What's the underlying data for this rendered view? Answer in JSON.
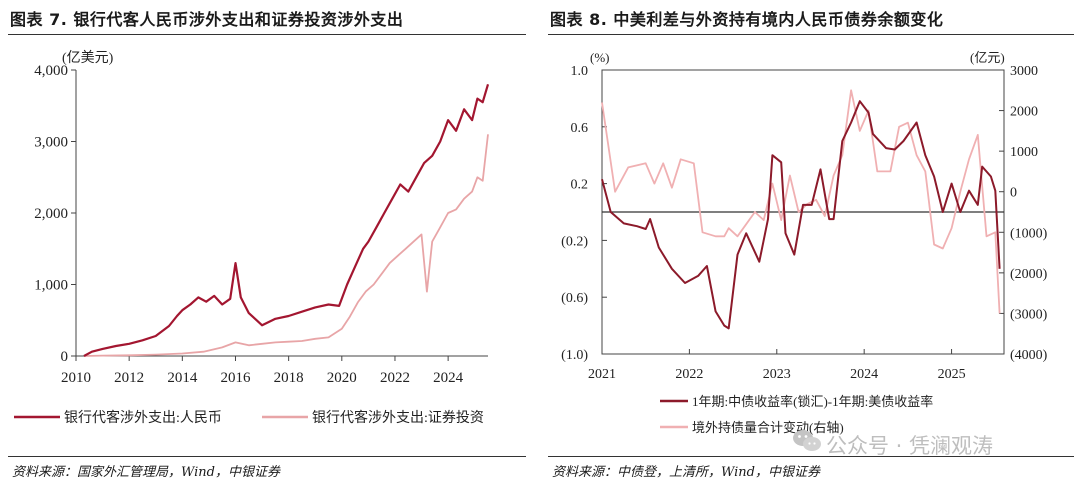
{
  "left": {
    "title": "图表 7. 银行代客人民币涉外支出和证券投资涉外支出",
    "source": "资料来源：国家外汇管理局，Wind，中银证券"
  },
  "right": {
    "title": "图表 8. 中美利差与外资持有境内人民币债券余额变化",
    "source": "资料来源：中债登，上清所，Wind，中银证券"
  },
  "watermark": {
    "text": "公众号 · 凭澜观涛",
    "icon": "wechat-icon"
  },
  "chart_data": [
    {
      "type": "line",
      "ylabel": "(亿美元)",
      "ylim": [
        0,
        4000
      ],
      "yticks": [
        "0",
        "1,000",
        "2,000",
        "3,000",
        "4,000"
      ],
      "yticks_values": [
        0,
        1000,
        2000,
        3000,
        4000
      ],
      "xlim": [
        2010,
        2025.5
      ],
      "xticks": [
        "2010",
        "2012",
        "2014",
        "2016",
        "2018",
        "2020",
        "2022",
        "2024"
      ],
      "legend_placement": "bottom",
      "series": [
        {
          "name": "银行代客涉外支出:人民币",
          "color": "#a31630",
          "points": [
            [
              2010.3,
              0
            ],
            [
              2010.6,
              60
            ],
            [
              2011.0,
              100
            ],
            [
              2011.5,
              140
            ],
            [
              2012.0,
              170
            ],
            [
              2012.5,
              220
            ],
            [
              2013.0,
              280
            ],
            [
              2013.5,
              420
            ],
            [
              2013.8,
              560
            ],
            [
              2014.0,
              640
            ],
            [
              2014.3,
              720
            ],
            [
              2014.6,
              820
            ],
            [
              2014.9,
              760
            ],
            [
              2015.2,
              840
            ],
            [
              2015.5,
              720
            ],
            [
              2015.8,
              800
            ],
            [
              2016.0,
              1300
            ],
            [
              2016.2,
              820
            ],
            [
              2016.5,
              600
            ],
            [
              2016.8,
              500
            ],
            [
              2017.0,
              430
            ],
            [
              2017.5,
              520
            ],
            [
              2018.0,
              560
            ],
            [
              2018.5,
              620
            ],
            [
              2019.0,
              680
            ],
            [
              2019.5,
              720
            ],
            [
              2019.9,
              700
            ],
            [
              2020.2,
              1000
            ],
            [
              2020.5,
              1250
            ],
            [
              2020.8,
              1500
            ],
            [
              2021.0,
              1600
            ],
            [
              2021.3,
              1800
            ],
            [
              2021.6,
              2000
            ],
            [
              2021.9,
              2200
            ],
            [
              2022.2,
              2400
            ],
            [
              2022.5,
              2300
            ],
            [
              2022.8,
              2500
            ],
            [
              2023.1,
              2700
            ],
            [
              2023.4,
              2800
            ],
            [
              2023.7,
              3000
            ],
            [
              2024.0,
              3300
            ],
            [
              2024.3,
              3150
            ],
            [
              2024.6,
              3450
            ],
            [
              2024.9,
              3300
            ],
            [
              2025.1,
              3600
            ],
            [
              2025.3,
              3550
            ],
            [
              2025.5,
              3800
            ]
          ]
        },
        {
          "name": "银行代客涉外支出:证券投资",
          "color": "#e8a5a7",
          "points": [
            [
              2010.3,
              0
            ],
            [
              2011.0,
              5
            ],
            [
              2012.0,
              10
            ],
            [
              2013.0,
              20
            ],
            [
              2014.0,
              35
            ],
            [
              2014.8,
              60
            ],
            [
              2015.5,
              120
            ],
            [
              2016.0,
              190
            ],
            [
              2016.5,
              150
            ],
            [
              2017.0,
              170
            ],
            [
              2017.5,
              190
            ],
            [
              2018.0,
              200
            ],
            [
              2018.5,
              210
            ],
            [
              2019.0,
              240
            ],
            [
              2019.5,
              260
            ],
            [
              2020.0,
              380
            ],
            [
              2020.3,
              550
            ],
            [
              2020.6,
              750
            ],
            [
              2020.9,
              900
            ],
            [
              2021.2,
              1000
            ],
            [
              2021.5,
              1150
            ],
            [
              2021.8,
              1300
            ],
            [
              2022.1,
              1400
            ],
            [
              2022.4,
              1500
            ],
            [
              2022.7,
              1600
            ],
            [
              2023.0,
              1700
            ],
            [
              2023.2,
              900
            ],
            [
              2023.4,
              1600
            ],
            [
              2023.7,
              1800
            ],
            [
              2024.0,
              2000
            ],
            [
              2024.3,
              2050
            ],
            [
              2024.6,
              2200
            ],
            [
              2024.9,
              2300
            ],
            [
              2025.1,
              2500
            ],
            [
              2025.3,
              2450
            ],
            [
              2025.5,
              3100
            ]
          ]
        }
      ]
    },
    {
      "type": "line",
      "ylabel_left": "(%)",
      "ylabel_right": "(亿元)",
      "ylim_left": [
        -1.0,
        1.0
      ],
      "ylim_right": [
        -4000,
        3000
      ],
      "yticks_left": [
        "1.0",
        "0.6",
        "0.2",
        "(0.2)",
        "(0.6)",
        "(1.0)"
      ],
      "yticks_left_values": [
        1.0,
        0.6,
        0.2,
        -0.2,
        -0.6,
        -1.0
      ],
      "yticks_right": [
        "3000",
        "2000",
        "1000",
        "0",
        "(1000)",
        "(2000)",
        "(3000)",
        "(4000)"
      ],
      "yticks_right_values": [
        3000,
        2000,
        1000,
        0,
        -1000,
        -2000,
        -3000,
        -4000
      ],
      "xlim": [
        2021.0,
        2025.6
      ],
      "xticks": [
        "2021",
        "2022",
        "2023",
        "2024",
        "2025"
      ],
      "legend_placement": "bottom",
      "series": [
        {
          "name": "1年期:中债收益率(锁汇)-1年期:美债收益率",
          "color": "#8c1a2a",
          "axis": "left",
          "points": [
            [
              2021.0,
              0.23
            ],
            [
              2021.1,
              0.0
            ],
            [
              2021.25,
              -0.08
            ],
            [
              2021.4,
              -0.1
            ],
            [
              2021.5,
              -0.12
            ],
            [
              2021.55,
              -0.05
            ],
            [
              2021.65,
              -0.25
            ],
            [
              2021.8,
              -0.4
            ],
            [
              2021.95,
              -0.5
            ],
            [
              2022.1,
              -0.45
            ],
            [
              2022.2,
              -0.38
            ],
            [
              2022.3,
              -0.7
            ],
            [
              2022.4,
              -0.8
            ],
            [
              2022.45,
              -0.82
            ],
            [
              2022.55,
              -0.3
            ],
            [
              2022.65,
              -0.15
            ],
            [
              2022.8,
              -0.35
            ],
            [
              2022.9,
              -0.05
            ],
            [
              2022.95,
              0.4
            ],
            [
              2023.05,
              0.35
            ],
            [
              2023.1,
              -0.15
            ],
            [
              2023.2,
              -0.3
            ],
            [
              2023.3,
              0.05
            ],
            [
              2023.4,
              0.05
            ],
            [
              2023.5,
              0.3
            ],
            [
              2023.6,
              -0.05
            ],
            [
              2023.65,
              -0.05
            ],
            [
              2023.75,
              0.5
            ],
            [
              2023.85,
              0.63
            ],
            [
              2023.95,
              0.78
            ],
            [
              2024.05,
              0.7
            ],
            [
              2024.1,
              0.55
            ],
            [
              2024.25,
              0.45
            ],
            [
              2024.35,
              0.44
            ],
            [
              2024.45,
              0.5
            ],
            [
              2024.6,
              0.63
            ],
            [
              2024.7,
              0.4
            ],
            [
              2024.8,
              0.25
            ],
            [
              2024.9,
              0.0
            ],
            [
              2025.0,
              0.2
            ],
            [
              2025.1,
              0.0
            ],
            [
              2025.2,
              0.15
            ],
            [
              2025.3,
              0.05
            ],
            [
              2025.35,
              0.32
            ],
            [
              2025.45,
              0.25
            ],
            [
              2025.5,
              0.15
            ],
            [
              2025.55,
              -0.4
            ]
          ]
        },
        {
          "name": "境外持债量合计变动(右轴)",
          "color": "#f0b0b2",
          "axis": "right",
          "points": [
            [
              2021.0,
              2200
            ],
            [
              2021.15,
              0
            ],
            [
              2021.3,
              600
            ],
            [
              2021.5,
              700
            ],
            [
              2021.6,
              200
            ],
            [
              2021.7,
              700
            ],
            [
              2021.8,
              100
            ],
            [
              2021.9,
              800
            ],
            [
              2022.05,
              700
            ],
            [
              2022.15,
              -1000
            ],
            [
              2022.3,
              -1100
            ],
            [
              2022.4,
              -1100
            ],
            [
              2022.45,
              -900
            ],
            [
              2022.55,
              -1100
            ],
            [
              2022.65,
              -800
            ],
            [
              2022.75,
              -500
            ],
            [
              2022.85,
              -700
            ],
            [
              2022.95,
              200
            ],
            [
              2023.05,
              -700
            ],
            [
              2023.15,
              400
            ],
            [
              2023.25,
              -500
            ],
            [
              2023.35,
              -300
            ],
            [
              2023.45,
              -200
            ],
            [
              2023.55,
              -600
            ],
            [
              2023.65,
              400
            ],
            [
              2023.75,
              900
            ],
            [
              2023.85,
              2500
            ],
            [
              2023.95,
              1500
            ],
            [
              2024.05,
              2000
            ],
            [
              2024.15,
              500
            ],
            [
              2024.3,
              500
            ],
            [
              2024.4,
              1600
            ],
            [
              2024.5,
              1700
            ],
            [
              2024.6,
              900
            ],
            [
              2024.7,
              500
            ],
            [
              2024.8,
              -1300
            ],
            [
              2024.9,
              -1400
            ],
            [
              2025.0,
              -900
            ],
            [
              2025.1,
              0
            ],
            [
              2025.2,
              800
            ],
            [
              2025.3,
              1400
            ],
            [
              2025.4,
              -1100
            ],
            [
              2025.5,
              -1000
            ],
            [
              2025.55,
              -3000
            ]
          ]
        }
      ],
      "zero_line": true
    }
  ]
}
